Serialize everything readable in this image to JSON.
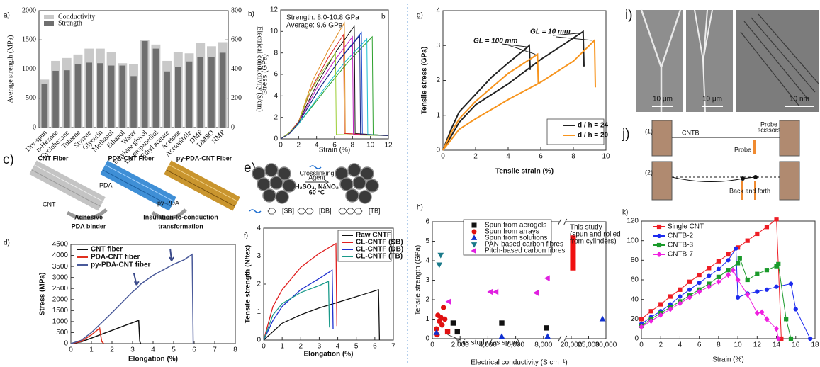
{
  "chart_data": [
    {
      "label": "a)",
      "type": "bar",
      "categories": [
        "Dry-spun",
        "n-Hexane",
        "Cyclohexane",
        "Toluene",
        "Styrene",
        "Glycerin",
        "Methanol",
        "Ethanol",
        "Water",
        "Ethylene glycol",
        "1,3-propanediol",
        "Ethyl acetate",
        "Acetone",
        "Acetonitrile",
        "DMF",
        "DMSO",
        "NMP"
      ],
      "series": [
        {
          "name": "Conductivity",
          "color": "#c9c9c9",
          "axis": "y2",
          "values": [
            328,
            456,
            476,
            500,
            540,
            540,
            516,
            440,
            432,
            596,
            568,
            456,
            516,
            508,
            580,
            556,
            584
          ]
        },
        {
          "name": "Strength",
          "color": "#6f6f6f",
          "values": [
            750,
            970,
            980,
            1080,
            1110,
            1100,
            1060,
            1060,
            880,
            1480,
            1350,
            960,
            1040,
            1130,
            1210,
            1200,
            1280
          ]
        }
      ],
      "ylabel": "Average strength (MPa)",
      "y2label": "Electrical conductivity (S/cm)",
      "ylim": [
        0,
        2000
      ],
      "yticks": [
        0,
        500,
        1000,
        1500,
        2000
      ],
      "y2lim": [
        0,
        800
      ],
      "y2ticks": [
        0,
        200,
        400,
        600,
        800
      ],
      "legend": "upper left"
    },
    {
      "label": "b)",
      "type": "line",
      "annotations": [
        "Strength: 8.0-10.8 GPa",
        "Average: 9.6 GPa",
        "b"
      ],
      "xlabel": "Strain (%)",
      "ylabel": "Stress (GPa)",
      "xlim": [
        0,
        12
      ],
      "xticks": [
        0,
        2,
        4,
        6,
        8,
        10,
        12
      ],
      "ylim": [
        0,
        12
      ],
      "yticks": [
        0,
        2,
        4,
        6,
        8,
        10,
        12
      ],
      "series": [
        {
          "color": "#e08a1e",
          "x": [
            0,
            1,
            2,
            3.55,
            5.33,
            7.1,
            7.2,
            12
          ],
          "values": [
            0,
            0.6,
            1.6,
            5.4,
            8.3,
            10.8,
            0.5,
            0.3
          ]
        },
        {
          "color": "#111111",
          "x": [
            0,
            1,
            2,
            4.1,
            6.15,
            8.2,
            8.3,
            12
          ],
          "values": [
            0,
            0.6,
            1.6,
            5.2,
            8.1,
            10.5,
            0.5,
            0.3
          ]
        },
        {
          "color": "#2ca02c",
          "x": [
            0,
            1,
            2,
            5.1,
            7.65,
            10.2,
            10.3,
            12
          ],
          "values": [
            0,
            0.5,
            1.4,
            4.7,
            7.3,
            9.5,
            0.4,
            0.3
          ]
        },
        {
          "color": "#1f4fd0",
          "x": [
            0,
            1,
            2,
            4.5,
            6.75,
            9.0,
            9.1,
            12
          ],
          "values": [
            0,
            0.6,
            1.5,
            4.9,
            7.6,
            9.9,
            0.4,
            0.3
          ]
        },
        {
          "color": "#d62728",
          "x": [
            0,
            1,
            2,
            3.5,
            5.25,
            7.0,
            7.1,
            12
          ],
          "values": [
            0,
            0.6,
            1.6,
            4.8,
            7.5,
            9.7,
            0.5,
            0.3
          ]
        },
        {
          "color": "#17becf",
          "x": [
            0,
            1,
            2,
            4.8,
            7.2,
            9.6,
            9.7,
            12
          ],
          "values": [
            0,
            0.5,
            1.4,
            4.6,
            7.2,
            9.3,
            0.4,
            0.3
          ]
        },
        {
          "color": "#c020c0",
          "x": [
            0,
            1,
            2,
            4,
            6,
            8,
            8.1,
            12
          ],
          "values": [
            0,
            0.5,
            1.5,
            4.7,
            7.3,
            9.5,
            0.4,
            0.3
          ]
        },
        {
          "color": "#9acd32",
          "x": [
            0,
            1,
            2,
            3.05,
            4.58,
            6.1,
            6.2,
            12
          ],
          "values": [
            0,
            0.6,
            1.5,
            4,
            6.2,
            8.0,
            0.4,
            0.3
          ]
        },
        {
          "color": "#1a237e",
          "x": [
            0,
            1,
            2,
            4.4,
            6.6,
            8.8,
            8.9,
            12
          ],
          "values": [
            0,
            0.5,
            1.5,
            4.8,
            7.4,
            9.6,
            0.4,
            0.3
          ]
        }
      ]
    },
    {
      "label": "d)",
      "type": "line",
      "xlabel": "Elongation (%)",
      "ylabel": "Stress (MPa)",
      "xlim": [
        0,
        8
      ],
      "xticks": [
        0,
        1,
        2,
        3,
        4,
        5,
        6,
        7,
        8
      ],
      "ylim": [
        0,
        4500
      ],
      "yticks": [
        0,
        500,
        1000,
        1500,
        2000,
        2500,
        3000,
        3500,
        4000,
        4500
      ],
      "legend": "upper left",
      "series": [
        {
          "name": "CNT fiber",
          "color": "#111111",
          "x": [
            0,
            0.5,
            1,
            2,
            3,
            3.3,
            3.35,
            3.4
          ],
          "values": [
            0,
            80,
            250,
            600,
            950,
            1050,
            100,
            0
          ]
        },
        {
          "name": "PDA-CNT fiber",
          "color": "#e0301e",
          "x": [
            0,
            0.5,
            1,
            1.4,
            1.5,
            1.6
          ],
          "values": [
            0,
            100,
            400,
            700,
            100,
            0
          ]
        },
        {
          "name": "py-PDA-CNT fiber",
          "color": "#4a5a9a",
          "x": [
            0,
            0.5,
            1,
            2,
            3,
            3.2,
            3.4,
            4,
            4.8,
            5,
            5.5,
            5.9,
            5.95
          ],
          "values": [
            0,
            150,
            500,
            1400,
            2350,
            2500,
            2700,
            3100,
            3500,
            3600,
            3800,
            4050,
            0
          ]
        }
      ]
    },
    {
      "label": "f)",
      "type": "line",
      "xlabel": "Elongation (%)",
      "ylabel": "Tensile strength (N/tex)",
      "xlim": [
        0,
        7
      ],
      "xticks": [
        0,
        1,
        2,
        3,
        4,
        5,
        6,
        7
      ],
      "ylim": [
        0,
        4
      ],
      "yticks": [
        0,
        1,
        2,
        3,
        4
      ],
      "legend": "upper right",
      "series": [
        {
          "name": "Raw CNTF",
          "color": "#111111",
          "x": [
            0,
            1,
            2,
            3,
            4,
            5,
            6.2,
            6.25
          ],
          "values": [
            0,
            0.6,
            0.9,
            1.15,
            1.35,
            1.55,
            1.8,
            0
          ]
        },
        {
          "name": "CL-CNTF (SB)",
          "color": "#e02020",
          "x": [
            0,
            0.5,
            1,
            2,
            3,
            3.9,
            3.95
          ],
          "values": [
            0,
            1.2,
            1.8,
            2.6,
            3.1,
            3.45,
            0.5
          ]
        },
        {
          "name": "CL-CNTF (DB)",
          "color": "#2030d0",
          "x": [
            0,
            0.5,
            1,
            2,
            3,
            3.7,
            3.75
          ],
          "values": [
            0,
            0.7,
            1.2,
            1.8,
            2.2,
            2.5,
            0.4
          ]
        },
        {
          "name": "CL-CNTF (TB)",
          "color": "#1a9a8a",
          "x": [
            0,
            0.5,
            1,
            2,
            3,
            3.5,
            3.55
          ],
          "values": [
            0,
            0.9,
            1.3,
            1.7,
            1.95,
            2.1,
            0.45
          ]
        }
      ]
    },
    {
      "label": "g)",
      "type": "line",
      "xlabel": "Tensile strain (%)",
      "ylabel": "Tensile stress (GPa)",
      "annotations": [
        "GL = 100 mm",
        "GL = 10 mm"
      ],
      "xlim": [
        0,
        10
      ],
      "xticks": [
        0,
        2,
        4,
        6,
        8,
        10
      ],
      "ylim": [
        0,
        4
      ],
      "yticks": [
        0,
        1,
        2,
        3,
        4
      ],
      "legend": "lower right",
      "series": [
        {
          "name": "d / h = 24",
          "color": "#222222",
          "x": [
            0,
            0.5,
            1,
            2,
            3,
            4,
            5.3,
            5.35,
            null,
            0,
            1,
            2,
            4,
            6,
            8.6,
            8.65
          ],
          "values": [
            0,
            0.6,
            1.1,
            1.6,
            2.1,
            2.5,
            3.0,
            2.3,
            null,
            0,
            0.8,
            1.3,
            1.9,
            2.6,
            3.4,
            2.4
          ]
        },
        {
          "name": "d / h = 20",
          "color": "#f7941d",
          "x": [
            0,
            0.5,
            1,
            2,
            3,
            4,
            5.8,
            5.85,
            null,
            0,
            1,
            2,
            4,
            6,
            8,
            9.3,
            9.35
          ],
          "values": [
            0,
            0.5,
            0.9,
            1.4,
            1.8,
            2.2,
            2.75,
            1.9,
            null,
            0,
            0.6,
            0.9,
            1.45,
            1.95,
            2.55,
            3.15,
            1.8
          ]
        }
      ]
    },
    {
      "label": "h)",
      "type": "scatter",
      "xlabel": "Electrical conductivity (S cm⁻¹)",
      "ylabel": "Tensile strength (GPa)",
      "annotations": [
        "This study",
        "(spun and rolled",
        "from cylinders)",
        "This study (as spun)"
      ],
      "xlim": [
        0,
        30000
      ],
      "x_break": [
        9000,
        19000
      ],
      "xticks": [
        0,
        {
          "value": 2000,
          "label": "2,000"
        },
        {
          "value": 4000,
          "label": "4,000"
        },
        {
          "value": 6000,
          "label": "6,000"
        },
        {
          "value": 8000,
          "label": "8,000"
        },
        {
          "value": 20000,
          "label": "20,000"
        },
        {
          "value": 25000,
          "label": "25,000"
        },
        {
          "value": 30000,
          "label": "30,000"
        }
      ],
      "ylim": [
        0,
        6
      ],
      "yticks": [
        0,
        1,
        2,
        3,
        4,
        5,
        6
      ],
      "legend": "upper left",
      "series": [
        {
          "name": "Spun from aerogels",
          "color": "#111111",
          "marker": "square",
          "x": [
            1500,
            1800,
            5000,
            8200
          ],
          "values": [
            0.8,
            0.35,
            0.8,
            0.55
          ]
        },
        {
          "name": "Spun from arrays",
          "color": "#e01010",
          "marker": "circle",
          "x": [
            300,
            400,
            500,
            600,
            700,
            800,
            900,
            350
          ],
          "values": [
            0.5,
            1.2,
            0.9,
            1.1,
            0.7,
            1.6,
            1.0,
            0.2
          ]
        },
        {
          "name": "Spun from solutions",
          "color": "#1030d0",
          "marker": "triangle",
          "x": [
            300,
            5000,
            8300,
            29000
          ],
          "values": [
            0.3,
            0.1,
            0.1,
            1.0
          ]
        },
        {
          "name": "PAN-based carbon fibres",
          "color": "#1a7a8a",
          "marker": "triangle-down",
          "x": [
            600,
            500
          ],
          "values": [
            4.3,
            3.8
          ]
        },
        {
          "name": "Pitch-based carbon fibres",
          "color": "#e020e0",
          "marker": "triangle-left",
          "x": [
            1200,
            4200,
            4600,
            7500,
            8300
          ],
          "values": [
            1.9,
            2.4,
            2.4,
            2.35,
            3.1
          ]
        }
      ],
      "study_range": {
        "x": 20500,
        "low": 3.5,
        "high": 5.3,
        "color": "#f01010"
      },
      "study_point": {
        "x": 1100,
        "y": 0.35,
        "color": "#e01010"
      }
    },
    {
      "label": "k)",
      "type": "line",
      "xlabel": "Strain (%)",
      "xlim": [
        0,
        18
      ],
      "xticks": [
        0,
        2,
        4,
        6,
        8,
        10,
        12,
        14,
        16,
        18
      ],
      "ylim": [
        0,
        120
      ],
      "yticks": [
        0,
        20,
        40,
        60,
        80,
        100,
        120
      ],
      "legend": "upper left",
      "series": [
        {
          "name": "Single CNT",
          "color": "#ee1c24",
          "marker": "square",
          "x": [
            0,
            1,
            2,
            3,
            4,
            5,
            6,
            7,
            8,
            9,
            10,
            11,
            12,
            13,
            14,
            14.5
          ],
          "values": [
            20,
            28,
            35,
            43,
            50,
            58,
            65,
            72,
            79,
            86,
            93,
            100,
            107,
            114,
            122,
            0
          ]
        },
        {
          "name": "CNTB-2",
          "color": "#1c2bee",
          "marker": "circle",
          "x": [
            0,
            1,
            2,
            3,
            4,
            5,
            6,
            7,
            8,
            9,
            9.8,
            10,
            11,
            12,
            13,
            14,
            15.5,
            16,
            17.5
          ],
          "values": [
            15,
            22,
            28,
            35,
            43,
            50,
            57,
            64,
            71,
            80,
            92,
            42,
            46,
            48,
            50,
            53,
            56,
            30,
            0
          ]
        },
        {
          "name": "CNTB-3",
          "color": "#1a9a2a",
          "marker": "square",
          "x": [
            0,
            1,
            2,
            3,
            4,
            5,
            6,
            7,
            8,
            9,
            10,
            10.2,
            11,
            12,
            13,
            14,
            14.2,
            15,
            15.5
          ],
          "values": [
            13,
            20,
            26,
            32,
            38,
            44,
            50,
            56,
            63,
            70,
            77,
            82,
            60,
            66,
            70,
            74,
            76,
            20,
            0
          ]
        },
        {
          "name": "CNTB-7",
          "color": "#f020e0",
          "marker": "diamond",
          "x": [
            0,
            1,
            2,
            3,
            4,
            5,
            6,
            7,
            8,
            9,
            9.5,
            10,
            11,
            12,
            12.5,
            13,
            14,
            14.2
          ],
          "values": [
            12,
            18,
            24,
            30,
            36,
            42,
            48,
            53,
            58,
            65,
            70,
            60,
            45,
            26,
            27,
            20,
            10,
            0
          ]
        }
      ]
    }
  ],
  "diagrams": [
    {
      "label": "c)",
      "texts": [
        "CNT Fiber",
        "PDA-CNT Fiber",
        "py-PDA-CNT Fiber",
        "CNT",
        "PDA",
        "py-PDA",
        "Adhesive",
        "PDA binder",
        "Insulation-to-conduction",
        "transformation"
      ]
    },
    {
      "label": "e)",
      "texts": [
        "Crosslinking",
        "Agent",
        "H₂SO₄, NaNO₂",
        "60 °C",
        "[SB]",
        "[DB]",
        "[TB]"
      ]
    },
    {
      "label": "i)",
      "texts": [
        "10 μm",
        "10 μm",
        "10 nm"
      ]
    },
    {
      "label": "j)",
      "texts": [
        "(1)",
        "CNTB",
        "Probe",
        "scissors",
        "Probe",
        "(2)",
        "Back and forth"
      ]
    }
  ]
}
